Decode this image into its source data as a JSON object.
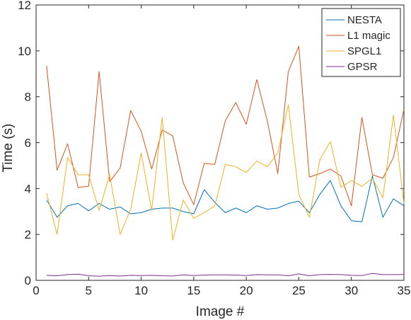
{
  "chart_data": {
    "type": "line",
    "xlabel": "Image #",
    "ylabel": "Time (s)",
    "xlim": [
      0,
      35
    ],
    "ylim": [
      0,
      12
    ],
    "xticks": [
      0,
      5,
      10,
      15,
      20,
      25,
      30,
      35
    ],
    "yticks": [
      0,
      2,
      4,
      6,
      8,
      10,
      12
    ],
    "grid": false,
    "legend_position": "top-right",
    "x": [
      1,
      2,
      3,
      4,
      5,
      6,
      7,
      8,
      9,
      10,
      11,
      12,
      13,
      14,
      15,
      16,
      17,
      18,
      19,
      20,
      21,
      22,
      23,
      24,
      25,
      26,
      27,
      28,
      29,
      30,
      31,
      32,
      33,
      34,
      35
    ],
    "series": [
      {
        "name": "NESTA",
        "color": "#0072bd",
        "values": [
          3.5,
          2.75,
          3.25,
          3.35,
          3.03,
          3.35,
          3.1,
          3.2,
          2.9,
          2.95,
          3.1,
          3.15,
          3.15,
          3.0,
          2.9,
          3.95,
          3.4,
          2.95,
          3.15,
          2.95,
          3.25,
          3.1,
          3.15,
          3.35,
          3.45,
          2.95,
          3.75,
          4.35,
          3.25,
          2.6,
          2.55,
          4.55,
          2.75,
          3.55,
          3.25
        ]
      },
      {
        "name": "L1 magic",
        "color": "#d95319",
        "values": [
          9.35,
          4.8,
          5.95,
          4.05,
          4.1,
          9.1,
          4.3,
          4.9,
          7.4,
          6.5,
          4.85,
          6.55,
          6.3,
          4.25,
          3.3,
          5.1,
          5.05,
          6.95,
          7.75,
          6.8,
          8.75,
          6.95,
          4.65,
          9.1,
          10.2,
          4.5,
          4.65,
          4.85,
          4.55,
          3.25,
          7.1,
          4.6,
          4.45,
          5.35,
          7.45
        ]
      },
      {
        "name": "SPGL1",
        "color": "#edb120",
        "values": [
          3.8,
          2.0,
          5.35,
          4.6,
          4.6,
          3.05,
          4.6,
          2.0,
          3.1,
          5.55,
          3.05,
          7.1,
          1.75,
          3.5,
          2.7,
          2.95,
          3.25,
          5.05,
          4.95,
          4.7,
          5.2,
          4.95,
          5.55,
          7.65,
          3.75,
          2.75,
          5.25,
          6.05,
          4.05,
          4.35,
          4.1,
          4.45,
          3.6,
          7.2,
          3.35
        ]
      },
      {
        "name": "GPSR",
        "color": "#7e2f8e",
        "values": [
          0.22,
          0.2,
          0.25,
          0.27,
          0.2,
          0.18,
          0.21,
          0.19,
          0.22,
          0.21,
          0.22,
          0.2,
          0.19,
          0.24,
          0.21,
          0.23,
          0.24,
          0.24,
          0.23,
          0.21,
          0.25,
          0.24,
          0.24,
          0.2,
          0.28,
          0.2,
          0.25,
          0.26,
          0.25,
          0.22,
          0.21,
          0.3,
          0.25,
          0.25,
          0.26
        ]
      }
    ]
  }
}
